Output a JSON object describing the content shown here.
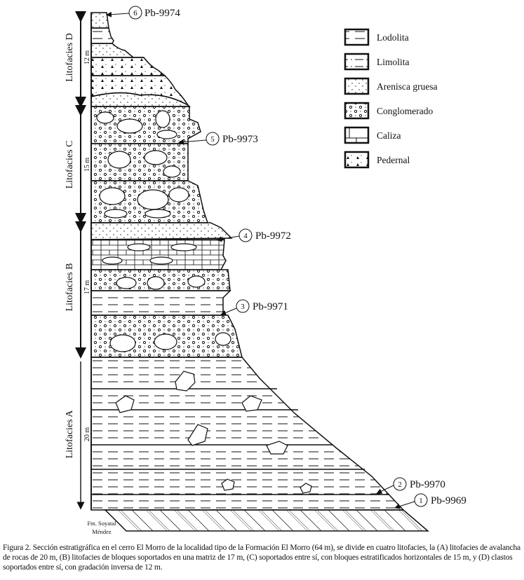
{
  "legend": [
    {
      "label": "Lodolita",
      "pattern": "lodolita"
    },
    {
      "label": "Limolita",
      "pattern": "limolita"
    },
    {
      "label": "Arenisca gruesa",
      "pattern": "arenisca"
    },
    {
      "label": "Conglomerado",
      "pattern": "conglomerado"
    },
    {
      "label": "Caliza",
      "pattern": "caliza"
    },
    {
      "label": "Pedernal",
      "pattern": "pedernal"
    }
  ],
  "units": [
    {
      "name": "Litofacies D",
      "thickness": "12 m"
    },
    {
      "name": "Litofacies C",
      "thickness": "15 m"
    },
    {
      "name": "Litofacies B",
      "thickness": "17 m"
    },
    {
      "name": "Litofacies A",
      "thickness": "20 m"
    }
  ],
  "base_unit": {
    "line1": "Fm. Soyatal",
    "line2": "Méndez"
  },
  "samples": [
    {
      "number": "6",
      "label": "Pb-9974"
    },
    {
      "number": "5",
      "label": "Pb-9973"
    },
    {
      "number": "4",
      "label": "Pb-9972"
    },
    {
      "number": "3",
      "label": "Pb-9971"
    },
    {
      "number": "2",
      "label": "Pb-9970"
    },
    {
      "number": "1",
      "label": "Pb-9969"
    }
  ],
  "caption": "Figura 2. Sección estratigráfica en el cerro El Morro de la localidad tipo de la Formación El Morro (64 m), se divide en cuatro litofacies, la (A) litofacies de avalancha de rocas de 20 m, (B) litofacies de bloques soportados en una matriz de 17 m, (C) soportados entre sí, con bloques estratificados horizontales de 15 m, y (D) clastos soportados entre sí, con gradación inversa de 12 m."
}
